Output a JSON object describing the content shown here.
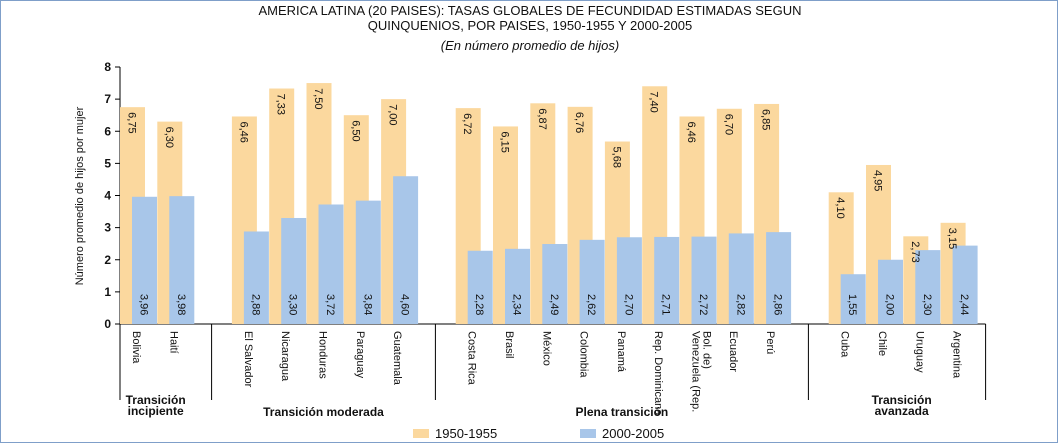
{
  "chart_data": {
    "type": "bar",
    "title": [
      "AMERICA LATINA (20 PAISES): TASAS GLOBALES DE FECUNDIDAD ESTIMADAS SEGUN",
      "QUINQUENIOS, POR PAISES, 1950-1955 Y 2000-2005"
    ],
    "subtitle": "(En número promedio de hijos)",
    "y_label": "Número promedio de hijos por mujer",
    "ylim": [
      0,
      8
    ],
    "yticks": [
      0,
      1,
      2,
      3,
      4,
      5,
      6,
      7,
      8
    ],
    "groups": [
      {
        "name": [
          "Transición",
          "incipiente"
        ],
        "categories": [
          "Bolivia",
          "Haití"
        ]
      },
      {
        "name": [
          "Transición moderada"
        ],
        "categories": [
          "El Salvador",
          "Nicaragua",
          "Honduras",
          "Paraguay",
          "Guatemala"
        ]
      },
      {
        "name": [
          "Plena transición"
        ],
        "categories": [
          "Costa Rica",
          "Brasil",
          "México",
          "Colombia",
          "Panamá",
          "Rep. Dominicana",
          [
            "Venezuela (Rep.",
            "Bol. de)"
          ],
          "Ecuador",
          "Perú"
        ]
      },
      {
        "name": [
          "Transición",
          "avanzada"
        ],
        "categories": [
          "Cuba",
          "Chile",
          "Uruguay",
          "Argentina"
        ]
      }
    ],
    "series": [
      {
        "name": "1950-1955",
        "color": "#fbd89e",
        "values": [
          6.75,
          6.3,
          6.46,
          7.33,
          7.5,
          6.5,
          7.0,
          6.72,
          6.15,
          6.87,
          6.76,
          5.68,
          7.4,
          6.46,
          6.7,
          6.85,
          4.1,
          4.95,
          2.73,
          3.15
        ],
        "value_labels": [
          "6,75",
          "6,30",
          "6,46",
          "7,33",
          "7,50",
          "6,50",
          "7,00",
          "6,72",
          "6,15",
          "6,87",
          "6,76",
          "5,68",
          "7,40",
          "6,46",
          "6,70",
          "6,85",
          "4,10",
          "4,95",
          "2,73",
          "3,15"
        ]
      },
      {
        "name": "2000-2005",
        "color": "#a8c6e9",
        "values": [
          3.96,
          3.98,
          2.88,
          3.3,
          3.72,
          3.84,
          4.6,
          2.28,
          2.34,
          2.49,
          2.62,
          2.7,
          2.71,
          2.72,
          2.82,
          2.86,
          1.55,
          2.0,
          2.3,
          2.44
        ],
        "value_labels": [
          "3,96",
          "3,98",
          "2,88",
          "3,30",
          "3,72",
          "3,84",
          "4,60",
          "2,28",
          "2,34",
          "2,49",
          "2,62",
          "2,70",
          "2,71",
          "2,72",
          "2,82",
          "2,86",
          "1,55",
          "2,00",
          "2,30",
          "2,44"
        ]
      }
    ]
  }
}
